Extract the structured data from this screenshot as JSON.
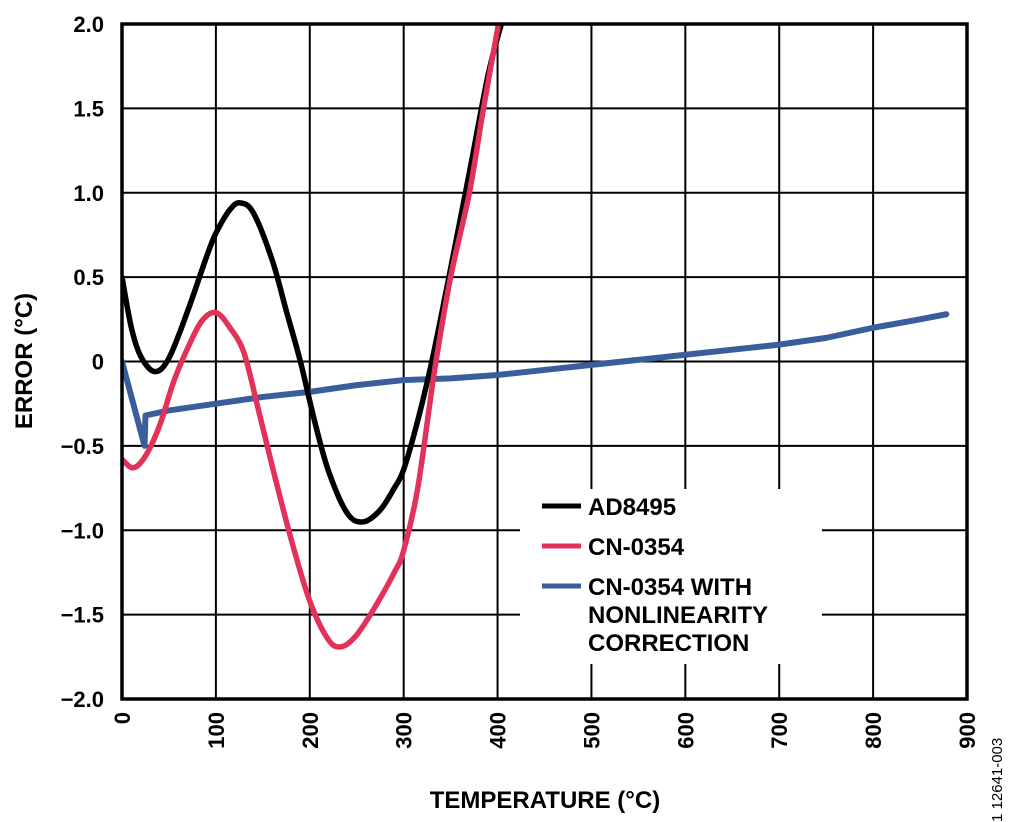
{
  "chart_data": {
    "type": "line",
    "title": "",
    "xlabel": "TEMPERATURE (°C)",
    "ylabel": "ERROR (°C)",
    "xlim": [
      0,
      900
    ],
    "ylim": [
      -2.0,
      2.0
    ],
    "grid": true,
    "x_ticks": [
      0,
      100,
      200,
      300,
      400,
      500,
      600,
      700,
      800,
      900
    ],
    "x_tick_labels": [
      "0",
      "100",
      "200",
      "300",
      "400",
      "500",
      "600",
      "700",
      "800",
      "900"
    ],
    "y_ticks": [
      2.0,
      1.5,
      1.0,
      0.5,
      0,
      -0.5,
      -1.0,
      -1.5,
      -2.0
    ],
    "y_tick_labels": [
      "2.0",
      "1.5",
      "1.0",
      "0.5",
      "0",
      "−0.5",
      "−1.0",
      "−1.5",
      "−2.0"
    ],
    "legend_position": "bottom-right",
    "figure_id": "1 12641-003",
    "series": [
      {
        "name": "AD8495",
        "legend_lines": [
          "AD8495"
        ],
        "color": "#000000",
        "points": [
          [
            0,
            0.5
          ],
          [
            10,
            0.2
          ],
          [
            20,
            0.03
          ],
          [
            35,
            -0.06
          ],
          [
            50,
            0.02
          ],
          [
            70,
            0.3
          ],
          [
            90,
            0.62
          ],
          [
            100,
            0.76
          ],
          [
            115,
            0.9
          ],
          [
            126,
            0.94
          ],
          [
            140,
            0.88
          ],
          [
            160,
            0.6
          ],
          [
            175,
            0.3
          ],
          [
            190,
            0.0
          ],
          [
            205,
            -0.35
          ],
          [
            220,
            -0.65
          ],
          [
            240,
            -0.9
          ],
          [
            257,
            -0.95
          ],
          [
            275,
            -0.88
          ],
          [
            290,
            -0.75
          ],
          [
            300,
            -0.64
          ],
          [
            315,
            -0.35
          ],
          [
            330,
            0.0
          ],
          [
            350,
            0.55
          ],
          [
            370,
            1.12
          ],
          [
            390,
            1.7
          ],
          [
            404,
            2.0
          ]
        ]
      },
      {
        "name": "CN-0354",
        "legend_lines": [
          "CN-0354"
        ],
        "color": "#E3325A",
        "points": [
          [
            0,
            -0.58
          ],
          [
            12,
            -0.63
          ],
          [
            25,
            -0.56
          ],
          [
            40,
            -0.38
          ],
          [
            55,
            -0.12
          ],
          [
            70,
            0.08
          ],
          [
            85,
            0.24
          ],
          [
            100,
            0.29
          ],
          [
            115,
            0.2
          ],
          [
            130,
            0.05
          ],
          [
            145,
            -0.28
          ],
          [
            160,
            -0.62
          ],
          [
            180,
            -1.05
          ],
          [
            200,
            -1.42
          ],
          [
            220,
            -1.65
          ],
          [
            234,
            -1.69
          ],
          [
            250,
            -1.62
          ],
          [
            270,
            -1.45
          ],
          [
            290,
            -1.25
          ],
          [
            300,
            -1.12
          ],
          [
            315,
            -0.75
          ],
          [
            333,
            -0.05
          ],
          [
            350,
            0.5
          ],
          [
            370,
            1.0
          ],
          [
            385,
            1.5
          ],
          [
            401,
            2.0
          ]
        ]
      },
      {
        "name": "CN-0354 WITH NONLINEARITY CORRECTION",
        "legend_lines": [
          "CN-0354 WITH",
          "NONLINEARITY",
          "CORRECTION"
        ],
        "color": "#3A5E9C",
        "points": [
          [
            0,
            0.0
          ],
          [
            24,
            -0.5
          ],
          [
            25,
            -0.32
          ],
          [
            50,
            -0.29
          ],
          [
            100,
            -0.25
          ],
          [
            150,
            -0.21
          ],
          [
            200,
            -0.18
          ],
          [
            250,
            -0.14
          ],
          [
            300,
            -0.11
          ],
          [
            350,
            -0.1
          ],
          [
            400,
            -0.08
          ],
          [
            450,
            -0.05
          ],
          [
            500,
            -0.02
          ],
          [
            550,
            0.01
          ],
          [
            600,
            0.04
          ],
          [
            650,
            0.07
          ],
          [
            700,
            0.1
          ],
          [
            750,
            0.14
          ],
          [
            800,
            0.2
          ],
          [
            850,
            0.25
          ],
          [
            878,
            0.28
          ]
        ]
      }
    ]
  }
}
